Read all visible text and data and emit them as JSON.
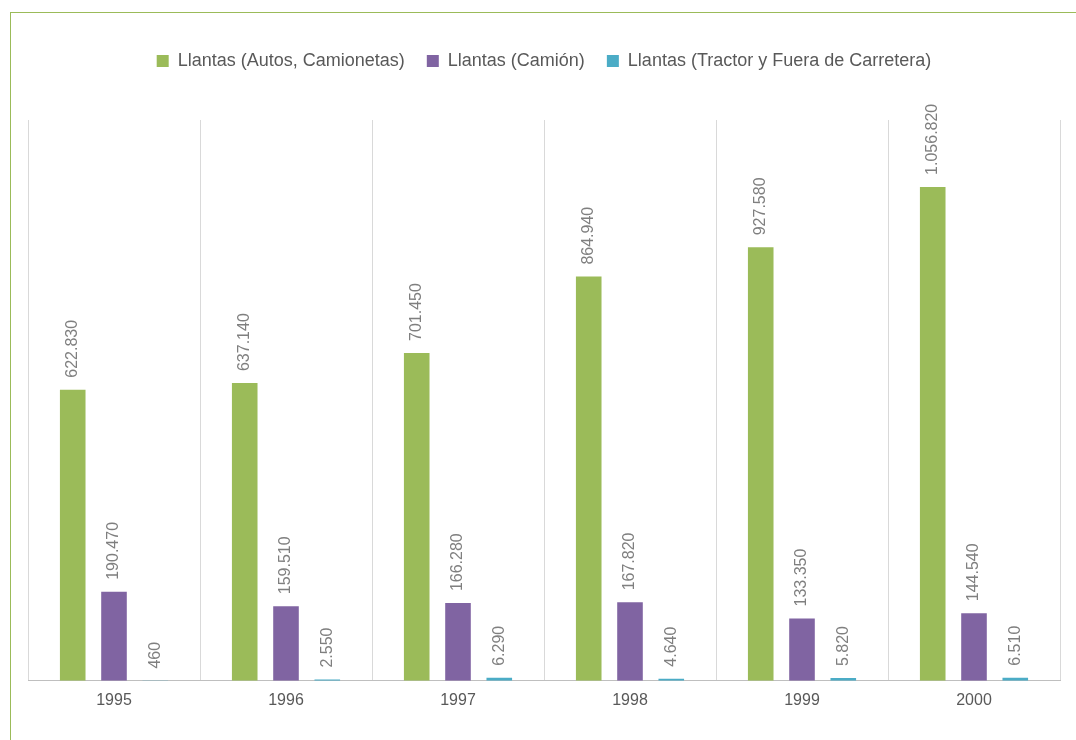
{
  "chart_data": {
    "type": "bar",
    "categories": [
      "1995",
      "1996",
      "1997",
      "1998",
      "1999",
      "2000"
    ],
    "series": [
      {
        "name": "Llantas (Autos, Camionetas)",
        "color": "#9bbb59",
        "values": [
          622830,
          637140,
          701450,
          864940,
          927580,
          1056820
        ],
        "value_labels": [
          "622.830",
          "637.140",
          "701.450",
          "864.940",
          "927.580",
          "1.056.820"
        ]
      },
      {
        "name": "Llantas (Camión)",
        "color": "#8064a2",
        "values": [
          190470,
          159510,
          166280,
          167820,
          133350,
          144540
        ],
        "value_labels": [
          "190.470",
          "159.510",
          "166.280",
          "167.820",
          "133.350",
          "144.540"
        ]
      },
      {
        "name": "Llantas (Tractor y Fuera de Carretera)",
        "color": "#4bacc6",
        "values": [
          460,
          2550,
          6290,
          4640,
          5820,
          6510
        ],
        "value_labels": [
          "460",
          "2.550",
          "6.290",
          "4.640",
          "5.820",
          "6.510"
        ]
      }
    ],
    "grid": "x",
    "legend": "top"
  }
}
